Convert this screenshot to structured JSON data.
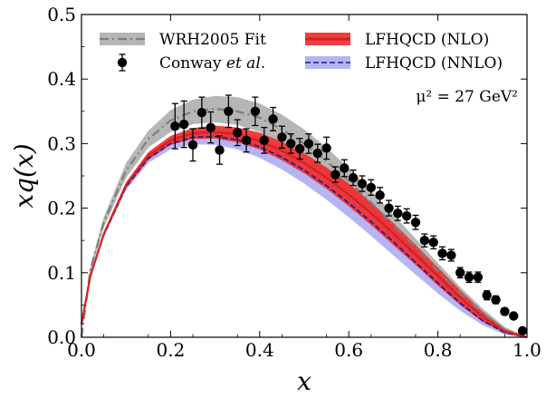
{
  "chart_data": {
    "type": "line",
    "xlabel": "x",
    "ylabel": "xq(x)",
    "xlim": [
      0.0,
      1.0
    ],
    "ylim": [
      0.0,
      0.5
    ],
    "x_ticks": [
      0.0,
      0.2,
      0.4,
      0.6,
      0.8,
      1.0
    ],
    "x_tick_labels": [
      "0.0",
      "0.2",
      "0.4",
      "0.6",
      "0.8",
      "1.0"
    ],
    "y_ticks": [
      0.0,
      0.1,
      0.2,
      0.3,
      0.4,
      0.5
    ],
    "y_tick_labels": [
      "0.0",
      "0.1",
      "0.2",
      "0.3",
      "0.4",
      "0.5"
    ],
    "annotation": "μ² = 27 GeV²",
    "legend_position": "top",
    "colors": {
      "wrh_band": "#a9a9a9",
      "wrh_line": "#7f7f7f",
      "nlo_band": "#ee2a2a",
      "nlo_line": "#d62020",
      "nnlo_band": "#9c9cf0",
      "nnlo_line": "#1a1a8c",
      "points": "#000000"
    },
    "series": [
      {
        "name": "WRH2005 Fit",
        "kind": "line-band",
        "style": "dash-dot",
        "x": [
          0.0,
          0.02,
          0.05,
          0.1,
          0.15,
          0.2,
          0.25,
          0.3,
          0.35,
          0.4,
          0.45,
          0.5,
          0.55,
          0.6,
          0.65,
          0.7,
          0.75,
          0.8,
          0.85,
          0.9,
          0.95,
          1.0
        ],
        "y": [
          0.0,
          0.105,
          0.178,
          0.258,
          0.307,
          0.336,
          0.35,
          0.354,
          0.35,
          0.34,
          0.322,
          0.3,
          0.273,
          0.242,
          0.209,
          0.174,
          0.139,
          0.103,
          0.069,
          0.038,
          0.012,
          0.0
        ],
        "y_low": [
          0.0,
          0.1,
          0.17,
          0.247,
          0.294,
          0.318,
          0.33,
          0.333,
          0.329,
          0.318,
          0.301,
          0.279,
          0.253,
          0.223,
          0.191,
          0.157,
          0.123,
          0.089,
          0.058,
          0.03,
          0.009,
          0.0
        ],
        "y_high": [
          0.0,
          0.11,
          0.186,
          0.27,
          0.32,
          0.352,
          0.368,
          0.374,
          0.372,
          0.362,
          0.345,
          0.322,
          0.294,
          0.262,
          0.227,
          0.19,
          0.153,
          0.115,
          0.078,
          0.045,
          0.016,
          0.0
        ]
      },
      {
        "name": "LFHQCD (NLO)",
        "kind": "line-band",
        "style": "solid",
        "x": [
          0.0,
          0.02,
          0.05,
          0.1,
          0.15,
          0.2,
          0.25,
          0.3,
          0.35,
          0.4,
          0.45,
          0.5,
          0.55,
          0.6,
          0.65,
          0.7,
          0.75,
          0.8,
          0.85,
          0.9,
          0.95,
          1.0
        ],
        "y": [
          0.02,
          0.095,
          0.16,
          0.236,
          0.281,
          0.305,
          0.316,
          0.318,
          0.314,
          0.304,
          0.289,
          0.27,
          0.247,
          0.221,
          0.192,
          0.161,
          0.128,
          0.095,
          0.062,
          0.032,
          0.009,
          0.0
        ],
        "y_low": [
          0.02,
          0.093,
          0.157,
          0.231,
          0.275,
          0.298,
          0.307,
          0.308,
          0.302,
          0.291,
          0.274,
          0.254,
          0.23,
          0.203,
          0.174,
          0.143,
          0.112,
          0.08,
          0.05,
          0.024,
          0.006,
          0.0
        ],
        "y_high": [
          0.02,
          0.097,
          0.163,
          0.24,
          0.287,
          0.312,
          0.324,
          0.328,
          0.325,
          0.317,
          0.303,
          0.285,
          0.263,
          0.238,
          0.209,
          0.177,
          0.143,
          0.108,
          0.073,
          0.04,
          0.013,
          0.0
        ]
      },
      {
        "name": "LFHQCD (NNLO)",
        "kind": "line-band",
        "style": "dashed",
        "x": [
          0.0,
          0.02,
          0.05,
          0.1,
          0.15,
          0.2,
          0.25,
          0.3,
          0.35,
          0.4,
          0.45,
          0.5,
          0.55,
          0.6,
          0.65,
          0.7,
          0.75,
          0.8,
          0.85,
          0.9,
          0.95,
          1.0
        ],
        "y": [
          0.02,
          0.094,
          0.158,
          0.233,
          0.277,
          0.3,
          0.31,
          0.311,
          0.306,
          0.295,
          0.279,
          0.259,
          0.235,
          0.208,
          0.179,
          0.148,
          0.116,
          0.084,
          0.053,
          0.026,
          0.007,
          0.0
        ],
        "y_low": [
          0.02,
          0.092,
          0.155,
          0.228,
          0.27,
          0.291,
          0.299,
          0.298,
          0.291,
          0.278,
          0.26,
          0.238,
          0.213,
          0.186,
          0.157,
          0.127,
          0.097,
          0.068,
          0.041,
          0.019,
          0.004,
          0.0
        ],
        "y_high": [
          0.02,
          0.096,
          0.161,
          0.238,
          0.284,
          0.309,
          0.32,
          0.323,
          0.32,
          0.311,
          0.297,
          0.279,
          0.257,
          0.231,
          0.202,
          0.171,
          0.138,
          0.103,
          0.069,
          0.037,
          0.012,
          0.0
        ]
      },
      {
        "name": "Conway et al.",
        "kind": "errorbar",
        "x": [
          0.21,
          0.23,
          0.25,
          0.27,
          0.29,
          0.31,
          0.33,
          0.35,
          0.37,
          0.39,
          0.41,
          0.43,
          0.45,
          0.47,
          0.49,
          0.51,
          0.53,
          0.55,
          0.57,
          0.59,
          0.61,
          0.63,
          0.65,
          0.67,
          0.69,
          0.71,
          0.73,
          0.75,
          0.77,
          0.79,
          0.81,
          0.83,
          0.85,
          0.87,
          0.89,
          0.91,
          0.93,
          0.95,
          0.97,
          0.99
        ],
        "y": [
          0.327,
          0.33,
          0.298,
          0.348,
          0.325,
          0.29,
          0.35,
          0.317,
          0.305,
          0.35,
          0.305,
          0.338,
          0.31,
          0.3,
          0.292,
          0.3,
          0.285,
          0.293,
          0.252,
          0.262,
          0.247,
          0.238,
          0.232,
          0.22,
          0.2,
          0.192,
          0.188,
          0.178,
          0.15,
          0.147,
          0.13,
          0.127,
          0.1,
          0.093,
          0.093,
          0.065,
          0.058,
          0.04,
          0.033,
          0.01
        ],
        "err": [
          0.035,
          0.036,
          0.025,
          0.024,
          0.024,
          0.022,
          0.025,
          0.02,
          0.018,
          0.022,
          0.02,
          0.018,
          0.017,
          0.015,
          0.016,
          0.015,
          0.014,
          0.017,
          0.012,
          0.013,
          0.012,
          0.012,
          0.012,
          0.012,
          0.012,
          0.011,
          0.011,
          0.011,
          0.01,
          0.01,
          0.01,
          0.009,
          0.008,
          0.008,
          0.008,
          0.007,
          0.006,
          0.005,
          0.004,
          0.003
        ]
      }
    ],
    "legend": [
      {
        "label": "WRH2005 Fit",
        "series": 0
      },
      {
        "label_pre": "Conway ",
        "label_em": "et al.",
        "series": 3
      },
      {
        "label": "LFHQCD (NLO)",
        "series": 1
      },
      {
        "label": "LFHQCD (NNLO)",
        "series": 2
      }
    ]
  }
}
